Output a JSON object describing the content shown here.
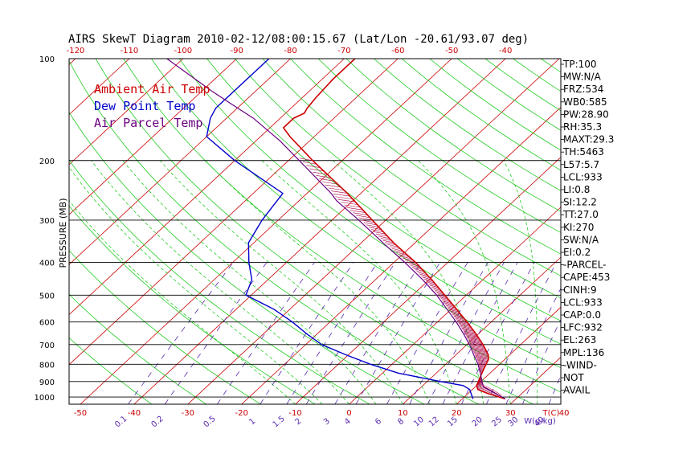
{
  "chart_data": {
    "type": "line",
    "title": "AIRS SkewT Diagram 2010-02-12/08:00:15.67 (Lat/Lon -20.61/93.07 deg)",
    "ylabel": "PRESSURE (MB)",
    "xlabel_unit": "T(C)",
    "mixing_ratio_unit": "W(g/kg)",
    "y_scale": "log-pressure",
    "ylim": [
      1050,
      100
    ],
    "xlim": [
      -50,
      40
    ],
    "pressure_ticks": [
      "100",
      "200",
      "300",
      "400",
      "500",
      "600",
      "700",
      "800",
      "900",
      "1000"
    ],
    "bottom_temp_ticks": [
      "-50",
      "-40",
      "-30",
      "-20",
      "-10",
      "0",
      "10",
      "20",
      "30",
      "40"
    ],
    "top_temp_ticks": [
      "-120",
      "-110",
      "-100",
      "-90",
      "-80",
      "-70",
      "-60",
      "-50",
      "-40"
    ],
    "mixing_ratio_ticks": [
      "0.1",
      "0.2",
      "0.5",
      "1",
      "1.5",
      "2",
      "3",
      "4",
      "6",
      "8",
      "10",
      "12",
      "15",
      "20",
      "25",
      "30",
      "40"
    ],
    "grid": true,
    "legend_position": "top-left",
    "series": [
      {
        "name": "Ambient Air Temp",
        "color": "#cc0000",
        "points": [
          [
            1013,
            28.0
          ],
          [
            1000,
            26.5
          ],
          [
            975,
            23.5
          ],
          [
            950,
            21.0
          ],
          [
            925,
            20.0
          ],
          [
            900,
            19.5
          ],
          [
            875,
            19.0
          ],
          [
            850,
            18.5
          ],
          [
            825,
            18.0
          ],
          [
            800,
            17.5
          ],
          [
            775,
            17.0
          ],
          [
            750,
            16.0
          ],
          [
            700,
            13.0
          ],
          [
            650,
            9.5
          ],
          [
            600,
            5.5
          ],
          [
            550,
            1.0
          ],
          [
            500,
            -4.0
          ],
          [
            450,
            -9.5
          ],
          [
            400,
            -16.0
          ],
          [
            350,
            -24.0
          ],
          [
            300,
            -32.5
          ],
          [
            250,
            -42.5
          ],
          [
            200,
            -55.5
          ],
          [
            170,
            -64.5
          ],
          [
            160,
            -67.5
          ],
          [
            150,
            -67.5
          ],
          [
            145,
            -66.5
          ],
          [
            140,
            -67.0
          ],
          [
            130,
            -67.5
          ],
          [
            115,
            -68.0
          ],
          [
            100,
            -68.0
          ]
        ]
      },
      {
        "name": "Dew Point Temp",
        "color": "#0000cc",
        "points": [
          [
            1013,
            22.0
          ],
          [
            1000,
            21.5
          ],
          [
            975,
            20.5
          ],
          [
            950,
            19.5
          ],
          [
            925,
            17.5
          ],
          [
            900,
            12.5
          ],
          [
            850,
            3.0
          ],
          [
            800,
            -4.0
          ],
          [
            750,
            -10.5
          ],
          [
            700,
            -17.0
          ],
          [
            650,
            -22.0
          ],
          [
            600,
            -27.0
          ],
          [
            550,
            -33.0
          ],
          [
            500,
            -41.0
          ],
          [
            450,
            -43.0
          ],
          [
            400,
            -47.0
          ],
          [
            350,
            -51.0
          ],
          [
            300,
            -53.0
          ],
          [
            250,
            -54.5
          ],
          [
            200,
            -70.0
          ],
          [
            170,
            -80.0
          ],
          [
            150,
            -83.0
          ],
          [
            140,
            -84.0
          ],
          [
            100,
            -84.0
          ]
        ]
      },
      {
        "name": "Air Parcel Temp",
        "color": "#6a0080",
        "points": [
          [
            1013,
            28.0
          ],
          [
            975,
            25.0
          ],
          [
            933,
            21.5
          ],
          [
            900,
            20.2
          ],
          [
            850,
            18.2
          ],
          [
            800,
            16.0
          ],
          [
            750,
            13.3
          ],
          [
            700,
            10.5
          ],
          [
            650,
            7.2
          ],
          [
            600,
            3.5
          ],
          [
            550,
            -0.8
          ],
          [
            500,
            -5.5
          ],
          [
            450,
            -11.2
          ],
          [
            400,
            -18.0
          ],
          [
            350,
            -26.0
          ],
          [
            300,
            -35.0
          ],
          [
            263,
            -43.0
          ],
          [
            250,
            -45.5
          ],
          [
            200,
            -58.0
          ],
          [
            175,
            -65.5
          ],
          [
            150,
            -75.0
          ],
          [
            136,
            -82.0
          ],
          [
            125,
            -88.0
          ],
          [
            100,
            -103.0
          ]
        ]
      }
    ],
    "indices": [
      "TP:100",
      "MW:N/A",
      "FRZ:534",
      "WB0:585",
      "PW:28.90",
      "RH:35.3",
      "MAXT:29.3",
      "TH:5463",
      "L57:5.7",
      "LCL:933",
      "LI:0.8",
      "SI:12.2",
      "TT:27.0",
      "KI:270",
      "SW:N/A",
      "EI:0.2",
      "-PARCEL-",
      "CAPE:453",
      "CINH:9",
      "LCL:933",
      "CAP:0.0",
      "LFC:932",
      "EL:263",
      "MPL:136",
      "-WIND-",
      "NOT",
      "AVAIL"
    ]
  }
}
